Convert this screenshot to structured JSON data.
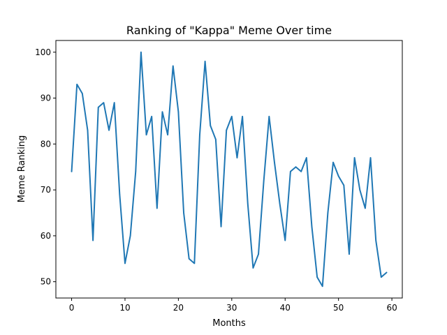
{
  "chart_data": {
    "type": "line",
    "title": "Ranking of \"Kappa\" Meme Over time",
    "xlabel": "Months",
    "ylabel": "Meme Ranking",
    "xlim": [
      -2.95,
      61.95
    ],
    "ylim": [
      46.45,
      102.55
    ],
    "xticks": [
      0,
      10,
      20,
      30,
      40,
      50,
      60
    ],
    "yticks": [
      50,
      60,
      70,
      80,
      90,
      100
    ],
    "grid": false,
    "series": [
      {
        "color": "#1f77b4",
        "x": [
          0,
          1,
          2,
          3,
          4,
          5,
          6,
          7,
          8,
          9,
          10,
          11,
          12,
          13,
          14,
          15,
          16,
          17,
          18,
          19,
          20,
          21,
          22,
          23,
          24,
          25,
          26,
          27,
          28,
          29,
          30,
          31,
          32,
          33,
          34,
          35,
          36,
          37,
          38,
          39,
          40,
          41,
          42,
          43,
          44,
          45,
          46,
          47,
          48,
          49,
          50,
          51,
          52,
          53,
          54,
          55,
          56,
          57,
          58,
          59
        ],
        "values": [
          74,
          93,
          91,
          83,
          59,
          88,
          89,
          83,
          89,
          69,
          54,
          60,
          74,
          100,
          82,
          86,
          66,
          87,
          82,
          97,
          87,
          65,
          55,
          54,
          82,
          98,
          84,
          81,
          62,
          83,
          86,
          77,
          86,
          67,
          53,
          56,
          72,
          86,
          76,
          67,
          59,
          74,
          75,
          74,
          77,
          62,
          51,
          49,
          65,
          76,
          73,
          71,
          56,
          77,
          70,
          66,
          77,
          59,
          51,
          52
        ]
      }
    ]
  }
}
